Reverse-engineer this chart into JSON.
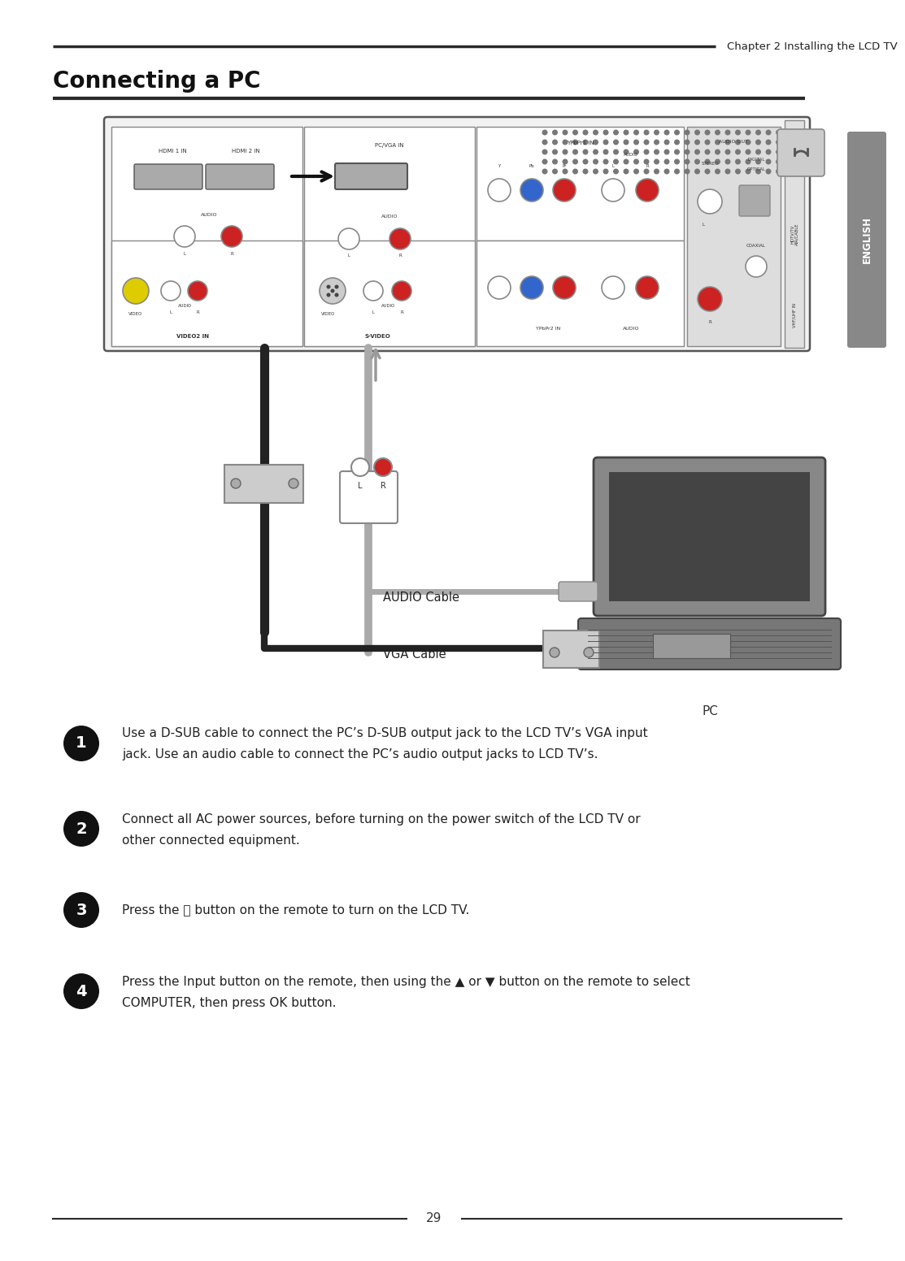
{
  "page_bg": "#ffffff",
  "chapter_header": "Chapter 2 Installing the LCD TV",
  "page_title": "Connecting a PC",
  "page_number": "29",
  "tab_text": "ENGLISH",
  "tab_color": "#888888",
  "header_line_color": "#2a2a2a",
  "title_fontsize": 20,
  "chapter_fontsize": 9.5,
  "step_fontsize": 11,
  "steps": [
    {
      "num": "1",
      "line1": "Use a D-SUB cable to connect the PC’s D-SUB output jack to the LCD TV’s VGA input",
      "line2": "jack. Use an audio cable to connect the PC’s audio output jacks to LCD TV’s."
    },
    {
      "num": "2",
      "line1": "Connect all AC power sources, before turning on the power switch of the LCD TV or",
      "line2": "other connected equipment."
    },
    {
      "num": "3",
      "line1": "Press the ⏻ button on the remote to turn on the LCD TV.",
      "line2": ""
    },
    {
      "num": "4",
      "line1": "Press the Input button on the remote, then using the ▲ or ▼ button on the remote to select",
      "line2": "COMPUTER, then press OK button."
    }
  ],
  "connector_red": "#cc2222",
  "connector_yellow": "#ddcc00",
  "connector_blue": "#3366cc",
  "laptop_body": "#888888",
  "laptop_screen": "#444444",
  "cable_black": "#222222",
  "cable_gray": "#aaaaaa"
}
